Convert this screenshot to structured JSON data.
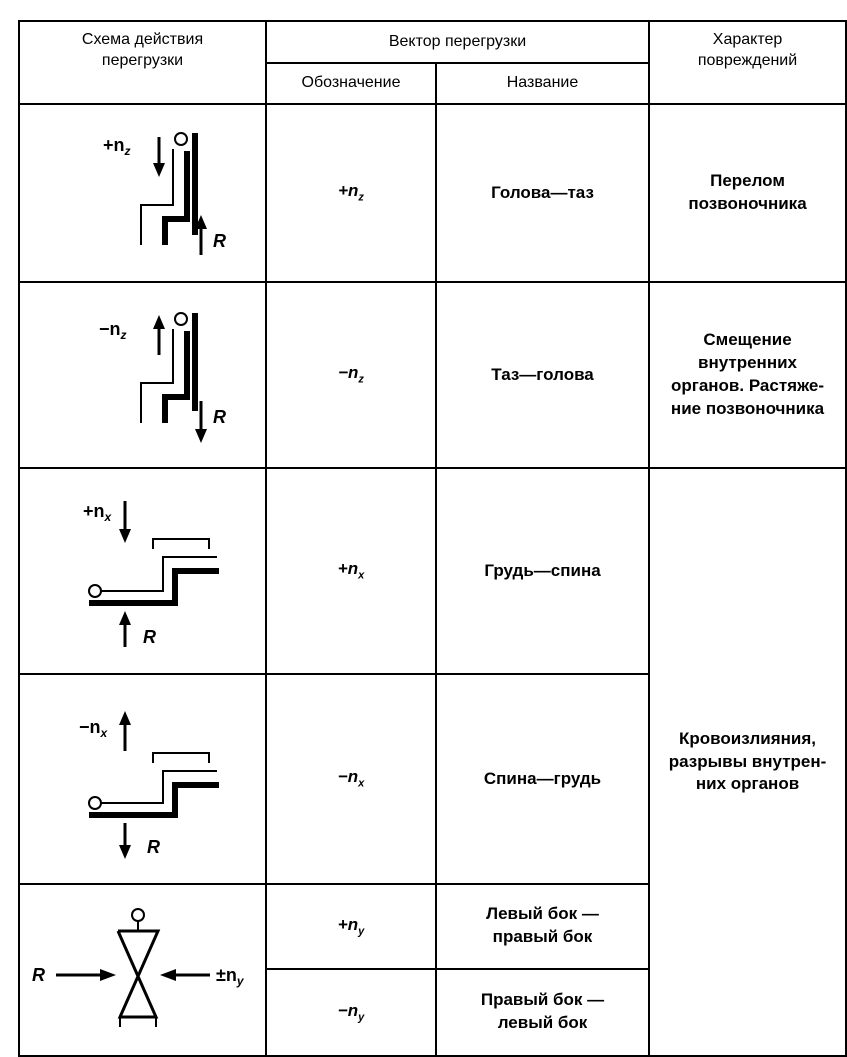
{
  "header": {
    "scheme": "Схема действия\nперегрузки",
    "vector": "Вектор перегрузки",
    "designation": "Обозначение",
    "name": "Название",
    "damage": "Характер\nповреждений"
  },
  "schemes": [
    {
      "load": {
        "main": "+n",
        "sub": "z"
      },
      "reaction": "R"
    },
    {
      "load": {
        "main": "−n",
        "sub": "z"
      },
      "reaction": "R"
    },
    {
      "load": {
        "main": "+n",
        "sub": "x"
      },
      "reaction": "R"
    },
    {
      "load": {
        "main": "−n",
        "sub": "x"
      },
      "reaction": "R"
    },
    {
      "load": {
        "main": "±n",
        "sub": "y"
      },
      "reaction": "R"
    }
  ],
  "rows": [
    {
      "designation": {
        "main": "+n",
        "sub": "z"
      },
      "name": "Голова—таз"
    },
    {
      "designation": {
        "main": "−n",
        "sub": "z"
      },
      "name": "Таз—голова"
    },
    {
      "designation": {
        "main": "+n",
        "sub": "x"
      },
      "name": "Грудь—спина"
    },
    {
      "designation": {
        "main": "−n",
        "sub": "x"
      },
      "name": "Спина—грудь"
    },
    {
      "designation": {
        "main": "+n",
        "sub": "y"
      },
      "name": "Левый бок —\nправый бок"
    },
    {
      "designation": {
        "main": "−n",
        "sub": "y"
      },
      "name": "Правый бок —\nлевый бок"
    }
  ],
  "damages": [
    "Перелом\nпозвоночника",
    "Смещение\nвнутренних\nорганов. Растяже-\nние позвоночника",
    "Кровоизлияния,\nразрывы внутрен-\nних органов"
  ]
}
